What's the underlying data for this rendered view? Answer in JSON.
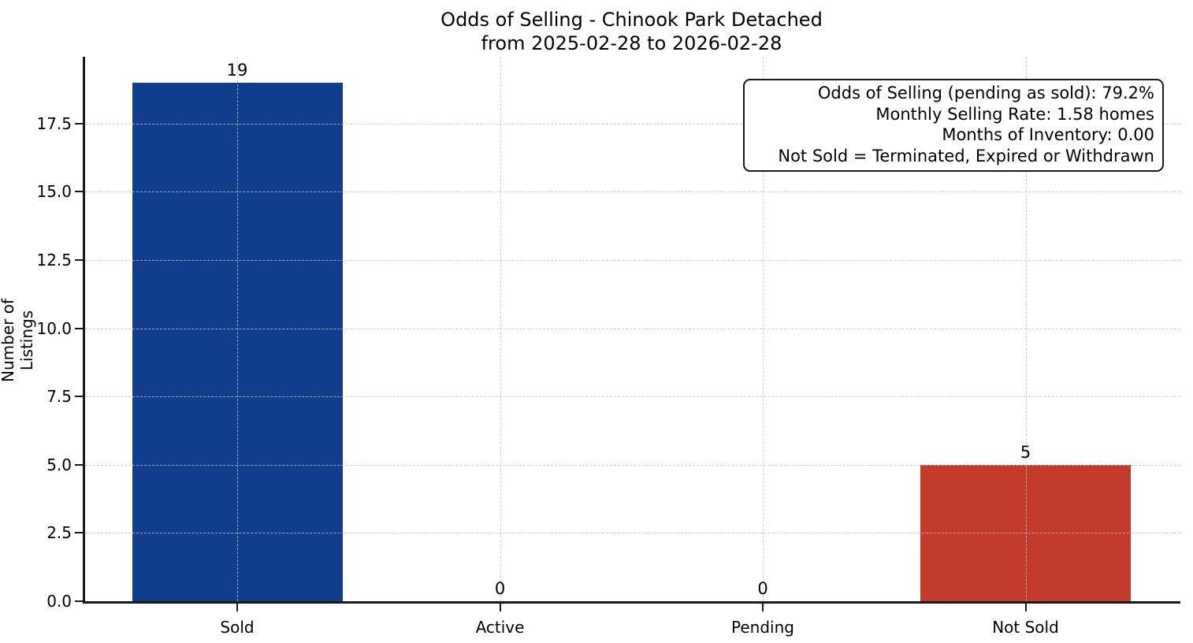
{
  "chart_data": {
    "type": "bar",
    "title": "Odds of Selling - Chinook Park Detached",
    "subtitle": "from 2025-02-28 to 2026-02-28",
    "categories": [
      "Sold",
      "Active",
      "Pending",
      "Not Sold"
    ],
    "values": [
      19,
      0,
      0,
      5
    ],
    "value_labels": [
      "19",
      "0",
      "0",
      "5"
    ],
    "bar_colors": [
      "#113e8c",
      null,
      null,
      "#c23b2c"
    ],
    "xlabel": "",
    "ylabel": "Number of Listings",
    "ylim": [
      0,
      19.95
    ],
    "yticks": [
      0.0,
      2.5,
      5.0,
      7.5,
      10.0,
      12.5,
      15.0,
      17.5
    ],
    "ytick_labels": [
      "0.0",
      "2.5",
      "5.0",
      "7.5",
      "10.0",
      "12.5",
      "15.0",
      "17.5"
    ],
    "grid": "both-axes-dashed-above-bars",
    "legend": null,
    "annotation_box": {
      "position": "top-right",
      "lines": [
        "Odds of Selling (pending as sold): 79.2%",
        "Monthly Selling Rate: 1.58 homes",
        "Months of Inventory: 0.00",
        "Not Sold = Terminated, Expired or Withdrawn"
      ]
    },
    "accent_colors": {
      "sold_bar": "#113e8c",
      "not_sold_bar": "#c23b2c",
      "spine": "#1a1a1a"
    }
  }
}
